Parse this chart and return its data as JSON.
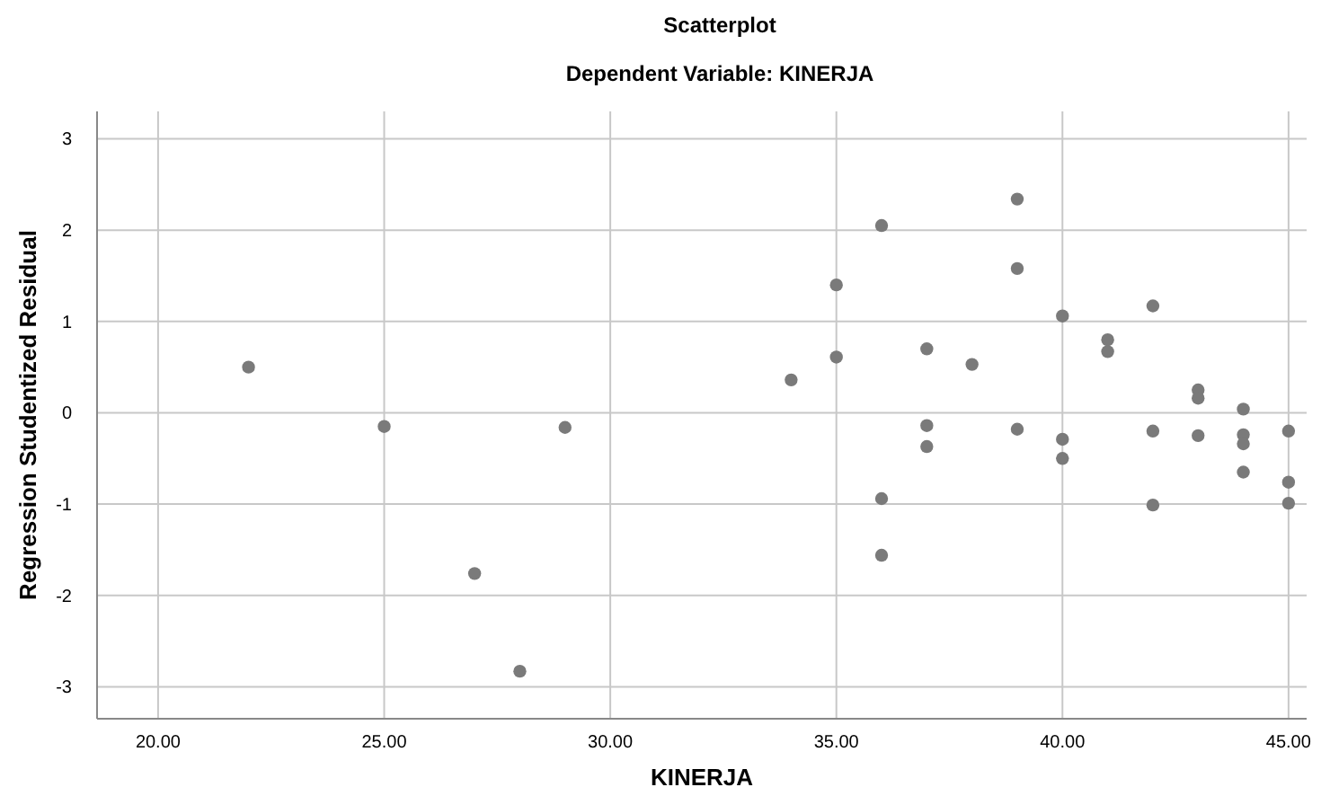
{
  "chart_data": {
    "type": "scatter",
    "title": "Scatterplot",
    "subtitle": "Dependent Variable: KINERJA",
    "xlabel": "KINERJA",
    "ylabel": "Regression Studentized Residual",
    "xlim": [
      18.65,
      45.4
    ],
    "ylim": [
      -3.35,
      3.3
    ],
    "xticks": [
      {
        "value": 20,
        "label": "20.00"
      },
      {
        "value": 25,
        "label": "25.00"
      },
      {
        "value": 30,
        "label": "30.00"
      },
      {
        "value": 35,
        "label": "35.00"
      },
      {
        "value": 40,
        "label": "40.00"
      },
      {
        "value": 45,
        "label": "45.00"
      }
    ],
    "yticks": [
      -3,
      -2,
      -1,
      0,
      1,
      2,
      3
    ],
    "grid": true,
    "marker": "circle",
    "series": [
      {
        "color": "#7a7a7a",
        "x": [
          22,
          25,
          29,
          27,
          28,
          34,
          35,
          35,
          36,
          36,
          36,
          37,
          37,
          37,
          38,
          39,
          39,
          39,
          40,
          40,
          40,
          41,
          41,
          42,
          42,
          42,
          43,
          43,
          43,
          44,
          44,
          44,
          44,
          45,
          45,
          45
        ],
        "values": [
          0.5,
          -0.15,
          -0.16,
          -1.76,
          -2.83,
          0.36,
          1.4,
          0.61,
          2.05,
          -0.94,
          -1.56,
          0.7,
          -0.14,
          -0.37,
          0.53,
          2.34,
          1.58,
          -0.18,
          1.06,
          -0.29,
          -0.5,
          0.8,
          0.67,
          1.17,
          -0.2,
          -1.01,
          0.25,
          0.16,
          -0.25,
          0.04,
          -0.24,
          -0.34,
          -0.65,
          -0.2,
          -0.76,
          -0.99
        ]
      }
    ]
  }
}
